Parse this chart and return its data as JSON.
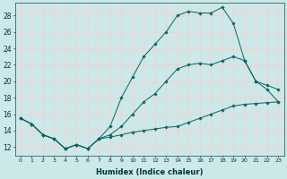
{
  "xlabel": "Humidex (Indice chaleur)",
  "bg_color": "#cce8e8",
  "grid_color": "#ffcccc",
  "line_color": "#006666",
  "xlim": [
    -0.5,
    23.5
  ],
  "ylim": [
    11.0,
    29.5
  ],
  "xticks": [
    0,
    1,
    2,
    3,
    4,
    5,
    6,
    7,
    8,
    9,
    10,
    11,
    12,
    13,
    14,
    15,
    16,
    17,
    18,
    19,
    20,
    21,
    22,
    23
  ],
  "yticks": [
    12,
    14,
    16,
    18,
    20,
    22,
    24,
    26,
    28
  ],
  "line1_x": [
    0,
    1,
    2,
    3,
    4,
    5,
    6,
    7,
    8,
    9,
    10,
    11,
    12,
    13,
    14,
    15,
    16,
    17,
    18,
    19,
    20,
    21,
    22,
    23
  ],
  "line1_y": [
    15.5,
    14.8,
    13.5,
    13.0,
    11.8,
    12.3,
    11.8,
    13.0,
    13.2,
    13.5,
    13.8,
    14.0,
    14.2,
    14.4,
    14.5,
    15.0,
    15.5,
    16.0,
    16.5,
    17.0,
    17.2,
    17.3,
    17.4,
    17.5
  ],
  "line2_x": [
    0,
    1,
    2,
    3,
    4,
    5,
    6,
    7,
    8,
    9,
    10,
    11,
    12,
    13,
    14,
    15,
    16,
    17,
    18,
    19,
    20,
    21,
    22,
    23
  ],
  "line2_y": [
    15.5,
    14.8,
    13.5,
    13.0,
    11.8,
    12.3,
    11.8,
    13.0,
    13.5,
    14.5,
    16.0,
    17.5,
    18.5,
    20.0,
    21.5,
    22.0,
    22.2,
    22.0,
    22.5,
    23.0,
    22.5,
    20.0,
    19.5,
    19.0
  ],
  "line3_x": [
    0,
    1,
    2,
    3,
    4,
    5,
    6,
    7,
    8,
    9,
    10,
    11,
    12,
    13,
    14,
    15,
    16,
    17,
    18,
    19,
    20,
    21,
    22,
    23
  ],
  "line3_y": [
    15.5,
    14.8,
    13.5,
    13.0,
    11.8,
    12.3,
    11.8,
    13.0,
    14.5,
    18.0,
    20.5,
    23.0,
    24.5,
    26.0,
    28.0,
    28.5,
    28.3,
    28.3,
    29.0,
    27.0,
    22.5,
    20.0,
    19.0,
    17.5
  ]
}
